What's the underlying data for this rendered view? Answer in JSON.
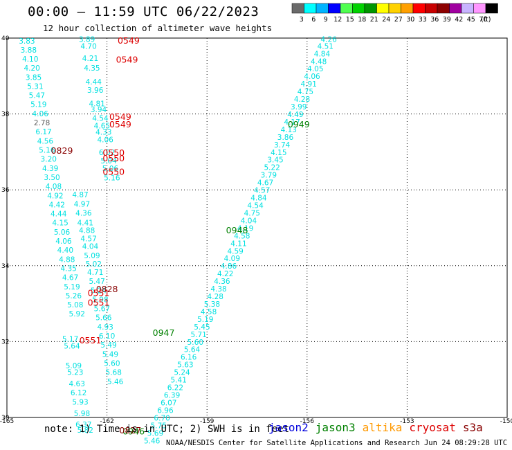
{
  "header": {
    "title": "00:00 – 11:59 UTC 06/22/2023",
    "subtitle": "12 hour collection of altimeter wave heights"
  },
  "colorbar": {
    "unit": "(ft)",
    "bins": [
      {
        "color": "#6a6a6a",
        "label": "3"
      },
      {
        "color": "#00ffff",
        "label": "6"
      },
      {
        "color": "#00b4ff",
        "label": "9"
      },
      {
        "color": "#0000ff",
        "label": "12"
      },
      {
        "color": "#50ff50",
        "label": "15"
      },
      {
        "color": "#00d200",
        "label": "18"
      },
      {
        "color": "#009600",
        "label": "21"
      },
      {
        "color": "#ffff00",
        "label": "24"
      },
      {
        "color": "#ffd200",
        "label": "27"
      },
      {
        "color": "#ffa000",
        "label": "30"
      },
      {
        "color": "#ff0000",
        "label": "33"
      },
      {
        "color": "#c80000",
        "label": "36"
      },
      {
        "color": "#8c0000",
        "label": "39"
      },
      {
        "color": "#a000a0",
        "label": "42"
      },
      {
        "color": "#c8b4ff",
        "label": "45"
      },
      {
        "color": "#ff96ff",
        "label": "70"
      },
      {
        "color": "#000000",
        "label": ""
      }
    ]
  },
  "axes": {
    "lon_ticks": [
      "-165",
      "-162",
      "-159",
      "-156",
      "-153",
      "-150"
    ],
    "lat_ticks": [
      "40",
      "38",
      "36",
      "34",
      "32",
      "30"
    ]
  },
  "colors": {
    "swh": "#00e0e0",
    "swh_gray": "#606060",
    "jason2": "#0000dd",
    "jason3": "#008000",
    "altika": "#ff9900",
    "cryosat": "#dd0000",
    "s3a": "#880000"
  },
  "tracks": {
    "east": [
      {
        "lon": -155.35,
        "lat": 39.9,
        "v": "4.26"
      },
      {
        "lon": -155.45,
        "lat": 39.72,
        "v": "4.51"
      },
      {
        "lon": -155.55,
        "lat": 39.52,
        "v": "4.84"
      },
      {
        "lon": -155.65,
        "lat": 39.32,
        "v": "4.48"
      },
      {
        "lon": -155.75,
        "lat": 39.12,
        "v": "4.05"
      },
      {
        "lon": -155.85,
        "lat": 38.92,
        "v": "4.06"
      },
      {
        "lon": -155.95,
        "lat": 38.72,
        "v": "4.91"
      },
      {
        "lon": -156.05,
        "lat": 38.52,
        "v": "4.75"
      },
      {
        "lon": -156.15,
        "lat": 38.32,
        "v": "4.28"
      },
      {
        "lon": -156.25,
        "lat": 38.12,
        "v": "3.99"
      },
      {
        "lon": -156.35,
        "lat": 37.92,
        "v": "4.49"
      },
      {
        "lon": -156.45,
        "lat": 37.72,
        "v": "4.17"
      },
      {
        "lon": -156.55,
        "lat": 37.52,
        "v": "4.13"
      },
      {
        "lon": -156.65,
        "lat": 37.32,
        "v": "3.86"
      },
      {
        "lon": -156.75,
        "lat": 37.12,
        "v": "3.74"
      },
      {
        "lon": -156.85,
        "lat": 36.92,
        "v": "4.15"
      },
      {
        "lon": -156.95,
        "lat": 36.72,
        "v": "3.45"
      },
      {
        "lon": -157.05,
        "lat": 36.52,
        "v": "5.22"
      },
      {
        "lon": -157.15,
        "lat": 36.32,
        "v": "3.79"
      },
      {
        "lon": -157.25,
        "lat": 36.12,
        "v": "4.67"
      },
      {
        "lon": -157.35,
        "lat": 35.92,
        "v": "4.57"
      },
      {
        "lon": -157.45,
        "lat": 35.72,
        "v": "4.84"
      },
      {
        "lon": -157.55,
        "lat": 35.52,
        "v": "4.54"
      },
      {
        "lon": -157.65,
        "lat": 35.32,
        "v": "4.75"
      },
      {
        "lon": -157.75,
        "lat": 35.12,
        "v": "4.04"
      },
      {
        "lon": -157.85,
        "lat": 34.92,
        "v": "4.19"
      },
      {
        "lon": -157.95,
        "lat": 34.72,
        "v": "4.58"
      },
      {
        "lon": -158.05,
        "lat": 34.52,
        "v": "4.11"
      },
      {
        "lon": -158.15,
        "lat": 34.32,
        "v": "4.59"
      },
      {
        "lon": -158.25,
        "lat": 34.12,
        "v": "4.09"
      },
      {
        "lon": -158.35,
        "lat": 33.92,
        "v": "4.86"
      },
      {
        "lon": -158.45,
        "lat": 33.72,
        "v": "4.22"
      },
      {
        "lon": -158.55,
        "lat": 33.52,
        "v": "4.36"
      },
      {
        "lon": -158.65,
        "lat": 33.32,
        "v": "4.38"
      },
      {
        "lon": -158.75,
        "lat": 33.12,
        "v": "4.28"
      },
      {
        "lon": -158.85,
        "lat": 32.92,
        "v": "5.38"
      },
      {
        "lon": -158.95,
        "lat": 32.72,
        "v": "4.58"
      },
      {
        "lon": -159.05,
        "lat": 32.52,
        "v": "5.19"
      },
      {
        "lon": -159.15,
        "lat": 32.32,
        "v": "5.45"
      },
      {
        "lon": -159.25,
        "lat": 32.12,
        "v": "5.71"
      },
      {
        "lon": -159.35,
        "lat": 31.92,
        "v": "5.60"
      },
      {
        "lon": -159.45,
        "lat": 31.72,
        "v": "5.64"
      },
      {
        "lon": -159.55,
        "lat": 31.52,
        "v": "6.16"
      },
      {
        "lon": -159.65,
        "lat": 31.32,
        "v": "5.63"
      },
      {
        "lon": -159.75,
        "lat": 31.12,
        "v": "5.24"
      },
      {
        "lon": -159.85,
        "lat": 30.92,
        "v": "5.41"
      },
      {
        "lon": -159.95,
        "lat": 30.72,
        "v": "6.22"
      },
      {
        "lon": -160.05,
        "lat": 30.52,
        "v": "6.39"
      },
      {
        "lon": -160.15,
        "lat": 30.32,
        "v": "6.07"
      },
      {
        "lon": -160.25,
        "lat": 30.12,
        "v": "6.96"
      },
      {
        "lon": -160.35,
        "lat": 29.92,
        "v": "6.70"
      },
      {
        "lon": -160.45,
        "lat": 29.72,
        "v": "5.75"
      },
      {
        "lon": -160.55,
        "lat": 29.52,
        "v": "5.69"
      },
      {
        "lon": -160.65,
        "lat": 29.32,
        "v": "5.46"
      }
    ],
    "left": [
      {
        "lon": -164.4,
        "lat": 39.85,
        "v": "3.83"
      },
      {
        "lon": -164.35,
        "lat": 39.62,
        "v": "3.88"
      },
      {
        "lon": -164.3,
        "lat": 39.38,
        "v": "4.10"
      },
      {
        "lon": -164.25,
        "lat": 39.14,
        "v": "4.20"
      },
      {
        "lon": -164.2,
        "lat": 38.9,
        "v": "3.85"
      },
      {
        "lon": -164.15,
        "lat": 38.66,
        "v": "5.31"
      },
      {
        "lon": -164.1,
        "lat": 38.42,
        "v": "5.47"
      },
      {
        "lon": -164.05,
        "lat": 38.18,
        "v": "5.19"
      },
      {
        "lon": -164.0,
        "lat": 37.94,
        "v": "4.06"
      },
      {
        "lon": -163.95,
        "lat": 37.7,
        "v": "2.78",
        "gray": true
      },
      {
        "lon": -163.9,
        "lat": 37.46,
        "v": "6.17"
      },
      {
        "lon": -163.85,
        "lat": 37.22,
        "v": "4.56"
      },
      {
        "lon": -163.8,
        "lat": 36.98,
        "v": "5.16"
      },
      {
        "lon": -163.75,
        "lat": 36.74,
        "v": "3.20"
      },
      {
        "lon": -163.7,
        "lat": 36.5,
        "v": "4.39"
      },
      {
        "lon": -163.65,
        "lat": 36.26,
        "v": "3.50"
      },
      {
        "lon": -163.6,
        "lat": 36.02,
        "v": "4.08"
      },
      {
        "lon": -163.55,
        "lat": 35.78,
        "v": "4.92"
      },
      {
        "lon": -163.5,
        "lat": 35.54,
        "v": "4.42"
      },
      {
        "lon": -163.45,
        "lat": 35.3,
        "v": "4.44"
      },
      {
        "lon": -163.4,
        "lat": 35.06,
        "v": "4.15"
      },
      {
        "lon": -163.35,
        "lat": 34.82,
        "v": "5.06"
      },
      {
        "lon": -163.3,
        "lat": 34.58,
        "v": "4.06"
      },
      {
        "lon": -163.25,
        "lat": 34.34,
        "v": "4.40"
      },
      {
        "lon": -163.2,
        "lat": 34.1,
        "v": "4.88"
      },
      {
        "lon": -163.15,
        "lat": 33.86,
        "v": "4.35"
      },
      {
        "lon": -163.1,
        "lat": 33.62,
        "v": "4.67"
      },
      {
        "lon": -163.05,
        "lat": 33.38,
        "v": "5.19"
      },
      {
        "lon": -163.0,
        "lat": 33.14,
        "v": "5.26"
      },
      {
        "lon": -162.95,
        "lat": 32.9,
        "v": "5.08"
      },
      {
        "lon": -162.9,
        "lat": 32.66,
        "v": "5.92"
      }
    ],
    "mid": [
      {
        "lon": -162.8,
        "lat": 35.8,
        "v": "4.87"
      },
      {
        "lon": -162.75,
        "lat": 35.56,
        "v": "4.97"
      },
      {
        "lon": -162.7,
        "lat": 35.32,
        "v": "4.36"
      },
      {
        "lon": -162.65,
        "lat": 35.06,
        "v": "4.41"
      },
      {
        "lon": -162.6,
        "lat": 34.86,
        "v": "4.88"
      },
      {
        "lon": -162.55,
        "lat": 34.64,
        "v": "4.57"
      },
      {
        "lon": -162.5,
        "lat": 34.44,
        "v": "4.04"
      },
      {
        "lon": -162.45,
        "lat": 34.2,
        "v": "5.09"
      },
      {
        "lon": -162.4,
        "lat": 33.98,
        "v": "5.02"
      },
      {
        "lon": -162.35,
        "lat": 33.76,
        "v": "4.71"
      },
      {
        "lon": -162.3,
        "lat": 33.52,
        "v": "5.47"
      },
      {
        "lon": -162.25,
        "lat": 33.28,
        "v": "5.24"
      },
      {
        "lon": -162.2,
        "lat": 33.04,
        "v": "5.98"
      },
      {
        "lon": -162.15,
        "lat": 32.8,
        "v": "5.67"
      },
      {
        "lon": -162.1,
        "lat": 32.56,
        "v": "5.66"
      },
      {
        "lon": -162.05,
        "lat": 32.32,
        "v": "4.93"
      },
      {
        "lon": -162.0,
        "lat": 32.08,
        "v": "6.10"
      },
      {
        "lon": -161.95,
        "lat": 31.84,
        "v": "5.49"
      },
      {
        "lon": -161.9,
        "lat": 31.6,
        "v": "5.49"
      },
      {
        "lon": -161.85,
        "lat": 31.36,
        "v": "5.60"
      },
      {
        "lon": -161.8,
        "lat": 31.12,
        "v": "5.68"
      },
      {
        "lon": -161.75,
        "lat": 30.88,
        "v": "5.46"
      }
    ],
    "upper": [
      {
        "lon": -162.6,
        "lat": 39.9,
        "v": "3.89"
      },
      {
        "lon": -162.55,
        "lat": 39.72,
        "v": "4.70"
      },
      {
        "lon": -162.5,
        "lat": 39.4,
        "v": "4.21"
      },
      {
        "lon": -162.45,
        "lat": 39.14,
        "v": "4.35"
      },
      {
        "lon": -162.4,
        "lat": 38.78,
        "v": "4.44"
      },
      {
        "lon": -162.35,
        "lat": 38.56,
        "v": "3.96"
      },
      {
        "lon": -162.3,
        "lat": 38.2,
        "v": "4.81"
      },
      {
        "lon": -162.25,
        "lat": 38.05,
        "v": "3.94"
      },
      {
        "lon": -162.2,
        "lat": 37.82,
        "v": "4.54"
      },
      {
        "lon": -162.15,
        "lat": 37.62,
        "v": "4.65"
      },
      {
        "lon": -162.1,
        "lat": 37.45,
        "v": "4.33"
      },
      {
        "lon": -162.05,
        "lat": 37.25,
        "v": "4.06"
      },
      {
        "lon": -162.0,
        "lat": 36.92,
        "v": "6.02"
      },
      {
        "lon": -161.95,
        "lat": 36.7,
        "v": "5.04"
      },
      {
        "lon": -161.9,
        "lat": 36.5,
        "v": "5.06"
      },
      {
        "lon": -161.85,
        "lat": 36.25,
        "v": "5.16"
      }
    ],
    "bottom": [
      {
        "lon": -163.1,
        "lat": 32.0,
        "v": "5.17"
      },
      {
        "lon": -163.05,
        "lat": 31.82,
        "v": "5.64"
      },
      {
        "lon": -163.0,
        "lat": 31.3,
        "v": "5.09"
      },
      {
        "lon": -162.95,
        "lat": 31.12,
        "v": "5.23"
      },
      {
        "lon": -162.9,
        "lat": 30.82,
        "v": "4.63"
      },
      {
        "lon": -162.85,
        "lat": 30.58,
        "v": "6.12"
      },
      {
        "lon": -162.8,
        "lat": 30.34,
        "v": "5.93"
      },
      {
        "lon": -162.75,
        "lat": 30.04,
        "v": "5.98"
      },
      {
        "lon": -162.7,
        "lat": 29.74,
        "v": "6.37"
      },
      {
        "lon": -162.65,
        "lat": 29.6,
        "v": "5.82"
      }
    ]
  },
  "pass_labels": [
    {
      "lon": -161.35,
      "lat": 39.85,
      "v": "0549",
      "sat": "cryosat"
    },
    {
      "lon": -161.4,
      "lat": 39.35,
      "v": "0549",
      "sat": "cryosat"
    },
    {
      "lon": -161.6,
      "lat": 37.85,
      "v": "0549",
      "sat": "cryosat"
    },
    {
      "lon": -161.6,
      "lat": 37.65,
      "v": "0549",
      "sat": "cryosat"
    },
    {
      "lon": -163.35,
      "lat": 36.95,
      "v": "0829",
      "sat": "s3a"
    },
    {
      "lon": -161.8,
      "lat": 36.9,
      "v": "0550",
      "sat": "cryosat"
    },
    {
      "lon": -161.8,
      "lat": 36.75,
      "v": "0550",
      "sat": "cryosat"
    },
    {
      "lon": -161.8,
      "lat": 36.4,
      "v": "0550",
      "sat": "cryosat"
    },
    {
      "lon": -162.0,
      "lat": 33.3,
      "v": "0828",
      "sat": "s3a"
    },
    {
      "lon": -162.25,
      "lat": 33.2,
      "v": "0551",
      "sat": "cryosat"
    },
    {
      "lon": -162.25,
      "lat": 32.95,
      "v": "0551",
      "sat": "cryosat"
    },
    {
      "lon": -162.5,
      "lat": 31.95,
      "v": "0551",
      "sat": "cryosat"
    },
    {
      "lon": -156.25,
      "lat": 37.65,
      "v": "0949",
      "sat": "jason3"
    },
    {
      "lon": -158.1,
      "lat": 34.85,
      "v": "0948",
      "sat": "jason3"
    },
    {
      "lon": -160.3,
      "lat": 32.15,
      "v": "0947",
      "sat": "jason3"
    },
    {
      "lon": -161.2,
      "lat": 29.55,
      "v": "0946",
      "sat": "jason3"
    },
    {
      "lon": -161.3,
      "lat": 29.58,
      "v": "0827",
      "sat": "s3a"
    }
  ],
  "legend": {
    "items": [
      {
        "label": "jason2",
        "sat": "jason2"
      },
      {
        "label": "jason3",
        "sat": "jason3"
      },
      {
        "label": "altika",
        "sat": "altika"
      },
      {
        "label": "cryosat",
        "sat": "cryosat"
      },
      {
        "label": "s3a",
        "sat": "s3a"
      }
    ]
  },
  "footer": {
    "note": "note: 1) Time is in UTC; 2) SWH is in feet",
    "credit": "NOAA/NESDIS Center for Satellite Applications and Research   Jun 24 08:29:28 UTC 2023"
  }
}
